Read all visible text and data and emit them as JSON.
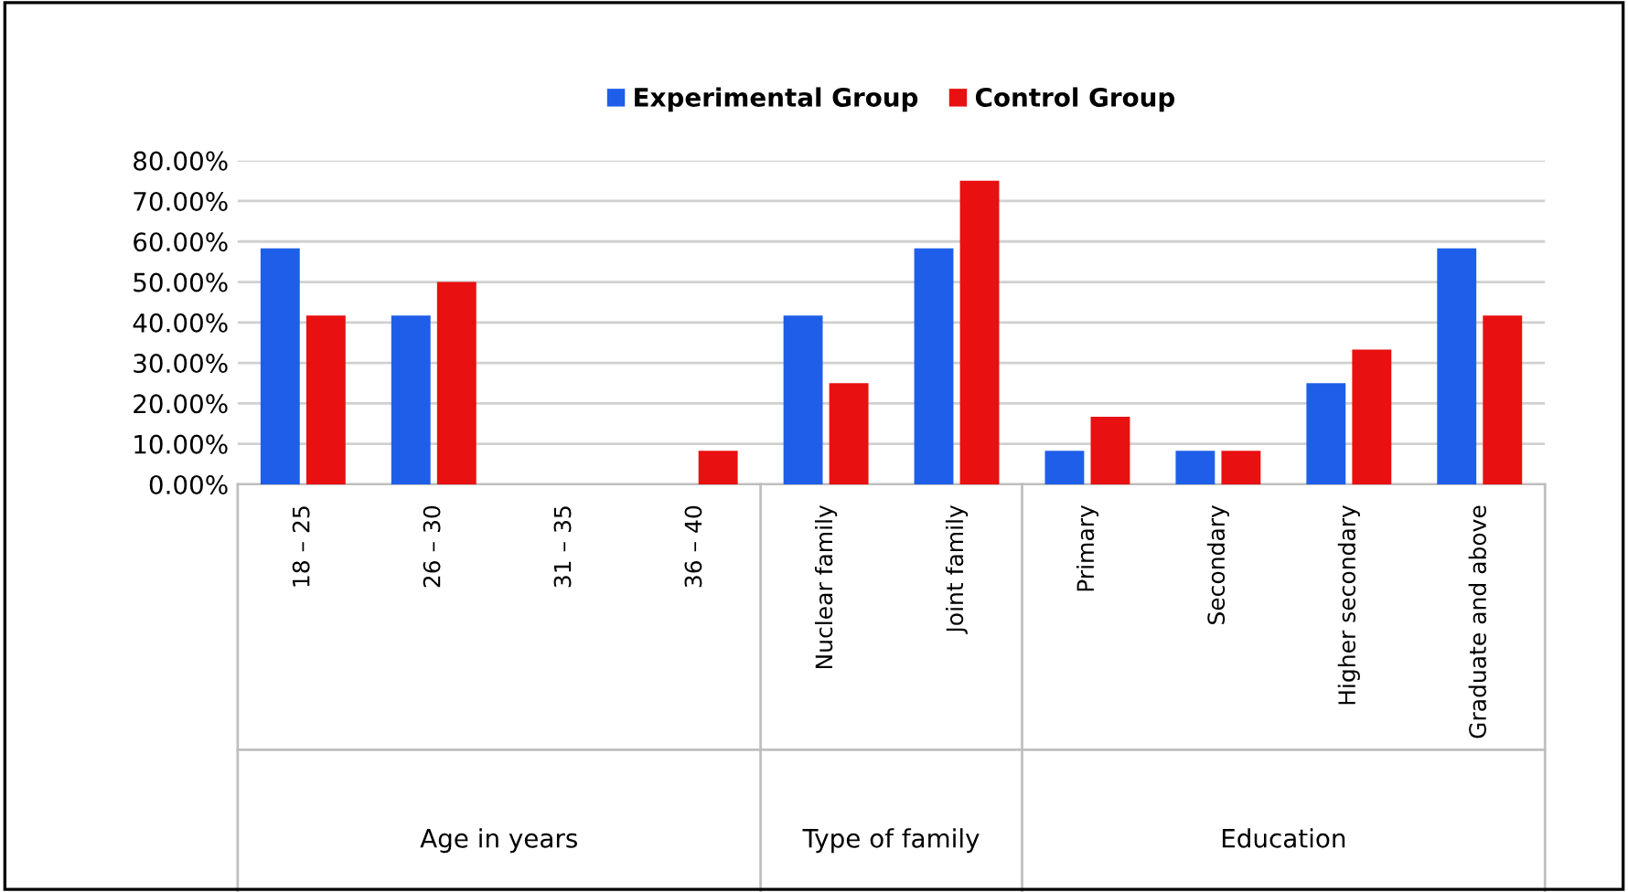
{
  "chart_data": {
    "type": "bar",
    "categories": [
      "18 – 25",
      "26 – 30",
      "31 – 35",
      "36 – 40",
      "Nuclear family",
      "Joint family",
      "Primary",
      "Secondary",
      "Higher secondary",
      "Graduate and above"
    ],
    "series": [
      {
        "name": "Experimental Group",
        "color": "#1f5ee8",
        "values": [
          58.3,
          41.7,
          0,
          0,
          41.7,
          58.3,
          8.3,
          8.3,
          25,
          58.3
        ]
      },
      {
        "name": "Control Group",
        "color": "#e81010",
        "values": [
          41.7,
          50,
          0,
          8.3,
          25,
          75,
          16.7,
          8.3,
          33.3,
          41.7
        ]
      }
    ],
    "annotations": [
      "Age in years",
      "Type of family",
      "Education"
    ],
    "ylim": [
      0,
      80
    ],
    "yticks": [
      {
        "value": 0,
        "label": "0.00%"
      },
      {
        "value": 10,
        "label": "10.00%"
      },
      {
        "value": 20,
        "label": "20.00%"
      },
      {
        "value": 30,
        "label": "30.00%"
      },
      {
        "value": 40,
        "label": "40.00%"
      },
      {
        "value": 50,
        "label": "50.00%"
      },
      {
        "value": 60,
        "label": "60.00%"
      },
      {
        "value": 70,
        "label": "70.00%"
      },
      {
        "value": 80,
        "label": "80.00%"
      }
    ],
    "grid": "y",
    "legend": "top"
  }
}
